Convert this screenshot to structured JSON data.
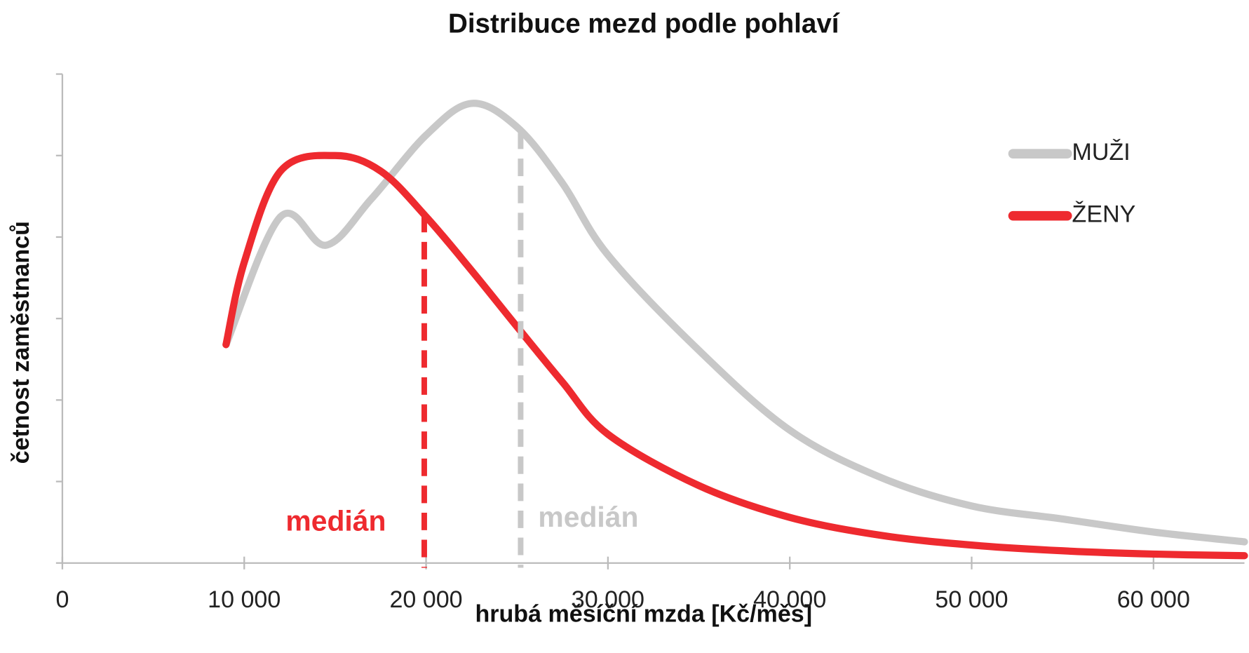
{
  "chart_data": {
    "type": "line",
    "title": "Distribuce mezd podle pohlaví",
    "x_label": "hrubá měsíční mzda [Kč/měs]",
    "y_label": "četnost zaměstnanců",
    "xlim": [
      0,
      65000
    ],
    "xticks": [
      0,
      {
        "value": 10000,
        "label": "10 000"
      },
      {
        "value": 20000,
        "label": "20 000"
      },
      {
        "value": 30000,
        "label": "30 000"
      },
      {
        "value": 40000,
        "label": "40 000"
      },
      {
        "value": 50000,
        "label": "50 000"
      },
      {
        "value": 60000,
        "label": "60 000"
      }
    ],
    "ylim": [
      0,
      6
    ],
    "yticks": [
      0,
      1,
      2,
      3,
      4,
      5,
      6
    ],
    "legend": "upper right",
    "series": [
      {
        "name": "MUŽI",
        "color": "#c8c8c8",
        "x": [
          9000,
          12000,
          14500,
          17000,
          20000,
          22500,
          25000,
          27500,
          30000,
          35000,
          40000,
          45000,
          50000,
          55000,
          60000,
          65000
        ],
        "values": [
          2.68,
          4.25,
          3.9,
          4.47,
          5.25,
          5.64,
          5.35,
          4.66,
          3.78,
          2.61,
          1.63,
          1.05,
          0.7,
          0.54,
          0.38,
          0.26
        ],
        "median": {
          "label": "medián",
          "x": 25200
        }
      },
      {
        "name": "ŽENY",
        "color": "#ee2a2f",
        "x": [
          9000,
          10000,
          12000,
          15000,
          17500,
          20000,
          22500,
          25000,
          27500,
          30000,
          35000,
          40000,
          45000,
          50000,
          55000,
          60000,
          65000
        ],
        "values": [
          2.68,
          3.69,
          4.81,
          5.0,
          4.81,
          4.25,
          3.59,
          2.9,
          2.22,
          1.58,
          0.95,
          0.56,
          0.34,
          0.22,
          0.15,
          0.11,
          0.09
        ],
        "median": {
          "label": "medián",
          "x": 19900
        }
      }
    ]
  }
}
